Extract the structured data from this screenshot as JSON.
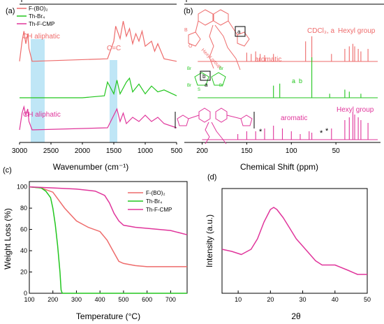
{
  "colors": {
    "red": "#ee6b6b",
    "green": "#22c61e",
    "magenta": "#e0359b",
    "highlight": "#bfe6f6"
  },
  "panel_a": {
    "label": "(a)",
    "xlabel": "Wavenumber (cm⁻¹)",
    "ticks": [
      "3000",
      "2500",
      "2000",
      "1500",
      "1000",
      "500"
    ],
    "legend": [
      "F-(BO)₂",
      "Th-Br₄",
      "Th-F-CMP"
    ],
    "annotations": {
      "ch1": "CH aliphatic",
      "cc": "C=C",
      "ch2": "CH aliphatic"
    }
  },
  "panel_b": {
    "label": "(b)",
    "xlabel": "Chemical Shift (ppm)",
    "ticks": [
      "200",
      "150",
      "100",
      "50"
    ],
    "annotations": {
      "aromatic1": "aromatic",
      "cdcl3": "CDCl₃, a",
      "hexyl1": "Hexyl group",
      "a1": "a",
      "b1": "b",
      "aromatic2": "aromatic",
      "hexyl2": "Hexyl group",
      "star": "*",
      "hexyl_struct": "Hexyl group",
      "br": "Br",
      "s": "S",
      "b_ring": "b",
      "a_ring": "a",
      "a_box": "a",
      "b_atom": "B",
      "o_atom": "O"
    }
  },
  "panel_c": {
    "label": "(c)",
    "xlabel": "Temperature (°C)",
    "ylabel": "Weight Loss (%)",
    "xticks": [
      "100",
      "200",
      "300",
      "400",
      "500",
      "600",
      "700"
    ],
    "yticks": [
      "0",
      "20",
      "40",
      "60",
      "80",
      "100"
    ],
    "legend": [
      "F-(BO)₂",
      "Th-Br₄",
      "Th-F-CMP"
    ]
  },
  "panel_d": {
    "label": "(d)",
    "xlabel": "2θ",
    "ylabel": "Intensity (a.u.)",
    "xticks": [
      "10",
      "20",
      "30",
      "40",
      "50"
    ]
  },
  "chart_data": [
    {
      "type": "line",
      "panel": "a",
      "xlabel": "Wavenumber (cm⁻¹)",
      "xlim": [
        3000,
        500
      ],
      "series": [
        {
          "name": "F-(BO)₂",
          "x": [
            3000,
            2960,
            2930,
            2900,
            2870,
            2850,
            2800,
            1600,
            1500,
            1470,
            1400,
            1350,
            1300,
            1250,
            1200,
            1150,
            1100,
            1050,
            1000,
            900,
            850,
            800,
            700,
            500
          ],
          "y": [
            0.2,
            1.0,
            1.4,
            0.9,
            1.3,
            0.7,
            0.2,
            0.3,
            1.0,
            1.6,
            1.1,
            1.8,
            1.2,
            1.5,
            0.9,
            1.3,
            1.0,
            1.4,
            0.8,
            1.0,
            0.6,
            0.9,
            0.3,
            0.2
          ]
        },
        {
          "name": "Th-Br₄",
          "x": [
            3000,
            2000,
            1650,
            1600,
            1500,
            1450,
            1400,
            1300,
            1250,
            1200,
            1100,
            1000,
            900,
            800,
            700,
            500
          ],
          "y": [
            0,
            0,
            0.1,
            0.8,
            0.2,
            0.9,
            0.2,
            0.8,
            1.0,
            0.3,
            0.7,
            0.2,
            0.6,
            0.3,
            0.4,
            0.1
          ]
        },
        {
          "name": "Th-F-CMP",
          "x": [
            3000,
            2960,
            2930,
            2900,
            2870,
            2850,
            2800,
            1600,
            1550,
            1500,
            1450,
            1400,
            1350,
            1300,
            1200,
            1100,
            1000,
            900,
            800,
            700,
            500
          ],
          "y": [
            0.2,
            1.0,
            1.3,
            0.9,
            1.2,
            0.6,
            0.2,
            0.3,
            0.6,
            0.9,
            1.2,
            0.6,
            1.0,
            0.5,
            0.8,
            0.6,
            0.9,
            0.6,
            0.8,
            0.5,
            0.3
          ]
        }
      ]
    },
    {
      "type": "line",
      "panel": "b",
      "xlabel": "Chemical Shift (ppm)",
      "xlim": [
        220,
        0
      ],
      "series": [
        {
          "name": "F-(BO)₂",
          "x": [
            150,
            145,
            140,
            135,
            130,
            120,
            84,
            77,
            55,
            40,
            35,
            31,
            29,
            25,
            22,
            14
          ],
          "y": [
            0.35,
            0.3,
            0.4,
            0.3,
            0.25,
            0.3,
            0.8,
            1.0,
            0.3,
            0.5,
            0.6,
            0.7,
            0.6,
            0.5,
            0.4,
            0.5
          ]
        },
        {
          "name": "Th-Br₄",
          "x": [
            120,
            113,
            77,
            57,
            40,
            35,
            22
          ],
          "y": [
            0.3,
            0.35,
            1.0,
            0.1,
            0.2,
            0.15,
            0.1
          ]
        },
        {
          "name": "Th-F-CMP",
          "x": [
            160,
            150,
            140,
            130,
            120,
            110,
            100,
            90,
            80,
            77,
            55,
            40,
            35,
            31,
            29,
            25,
            22,
            14
          ],
          "y": [
            0.2,
            0.3,
            0.3,
            0.4,
            0.5,
            0.4,
            0.3,
            0.2,
            0.3,
            0.25,
            0.4,
            0.7,
            0.8,
            1.0,
            0.9,
            0.8,
            0.7,
            0.6
          ]
        }
      ]
    },
    {
      "type": "line",
      "panel": "c",
      "xlabel": "Temperature (°C)",
      "ylabel": "Weight Loss (%)",
      "xlim": [
        100,
        770
      ],
      "ylim": [
        0,
        105
      ],
      "series": [
        {
          "name": "F-(BO)₂",
          "x": [
            100,
            150,
            200,
            250,
            300,
            350,
            400,
            430,
            460,
            480,
            500,
            550,
            600,
            700,
            770
          ],
          "y": [
            100,
            99,
            95,
            80,
            68,
            62,
            58,
            50,
            38,
            30,
            28,
            26,
            25,
            25,
            25
          ]
        },
        {
          "name": "Th-Br₄",
          "x": [
            100,
            150,
            170,
            190,
            200,
            210,
            220,
            230,
            235,
            240,
            300,
            400,
            500,
            600,
            700,
            770
          ],
          "y": [
            100,
            99,
            96,
            90,
            80,
            65,
            45,
            20,
            3,
            0,
            0,
            0,
            0,
            0,
            0,
            0
          ]
        },
        {
          "name": "Th-F-CMP",
          "x": [
            100,
            200,
            300,
            380,
            420,
            440,
            460,
            480,
            500,
            550,
            600,
            700,
            770
          ],
          "y": [
            100,
            99,
            98,
            96,
            92,
            85,
            75,
            68,
            64,
            62,
            61,
            59,
            55
          ]
        }
      ]
    },
    {
      "type": "line",
      "panel": "d",
      "xlabel": "2θ",
      "ylabel": "Intensity (a.u.)",
      "xlim": [
        5,
        50
      ],
      "series": [
        {
          "name": "",
          "x": [
            5,
            8,
            11,
            14,
            16,
            18,
            20,
            21,
            22,
            24,
            26,
            28,
            30,
            32,
            34,
            36,
            38,
            40,
            44,
            47,
            50
          ],
          "y": [
            0.42,
            0.4,
            0.37,
            0.42,
            0.52,
            0.68,
            0.8,
            0.82,
            0.8,
            0.72,
            0.62,
            0.52,
            0.45,
            0.38,
            0.31,
            0.27,
            0.27,
            0.27,
            0.22,
            0.18,
            0.18
          ]
        }
      ]
    }
  ]
}
